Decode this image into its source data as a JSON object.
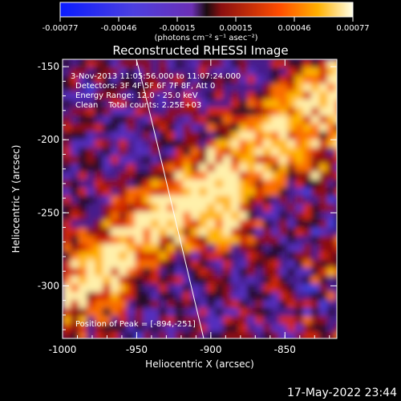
{
  "colorbar": {
    "tick_labels": [
      "-0.00077",
      "-0.00046",
      "-0.00015",
      "0.00015",
      "0.00046",
      "0.00077"
    ],
    "units_label": "(photons cm⁻² s⁻¹ asec⁻²)"
  },
  "image": {
    "title": "Reconstructed RHESSI Image",
    "info_lines": [
      "3-Nov-2013 11:05:56.000 to 11:07:24.000",
      "Detectors: 3F 4F 5F 6F 7F 8F, Att 0",
      "Energy Range: 12.0 - 25.0 keV",
      "Clean    Total counts: 2.25E+03"
    ],
    "peak_label": "Position of Peak = [-894,-251]",
    "x_axis": {
      "label": "Heliocentric X (arcsec)",
      "tick_labels": [
        "-1000",
        "-950",
        "-900",
        "-850"
      ],
      "ticks": [
        -1000,
        -950,
        -900,
        -850
      ],
      "range": [
        -1000,
        -815
      ]
    },
    "y_axis": {
      "label": "Heliocentric Y (arcsec)",
      "tick_labels": [
        "-150",
        "-200",
        "-250",
        "-300"
      ],
      "ticks": [
        -150,
        -200,
        -250,
        -300
      ],
      "range": [
        -336,
        -145
      ]
    },
    "timestamp": "17-May-2022 23:44"
  }
}
